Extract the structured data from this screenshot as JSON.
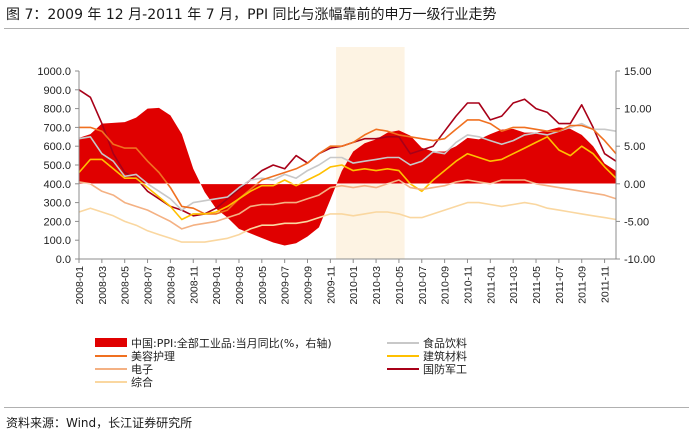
{
  "title": "图 7：2009 年 12 月-2011 年 7 月，PPI 同比与涨幅靠前的申万一级行业走势",
  "source": "资料来源：Wind，长江证券研究所",
  "chart_data": {
    "type": "line",
    "title": "图 7：2009 年 12 月-2011 年 7 月，PPI 同比与涨幅靠前的申万一级行业走势",
    "x": [
      "2008-01",
      "2008-02",
      "2008-03",
      "2008-04",
      "2008-05",
      "2008-06",
      "2008-07",
      "2008-08",
      "2008-09",
      "2008-10",
      "2008-11",
      "2008-12",
      "2009-01",
      "2009-02",
      "2009-03",
      "2009-04",
      "2009-05",
      "2009-06",
      "2009-07",
      "2009-08",
      "2009-09",
      "2009-10",
      "2009-11",
      "2009-12",
      "2010-01",
      "2010-02",
      "2010-03",
      "2010-04",
      "2010-05",
      "2010-06",
      "2010-07",
      "2010-08",
      "2010-09",
      "2010-10",
      "2010-11",
      "2010-12",
      "2011-01",
      "2011-02",
      "2011-03",
      "2011-04",
      "2011-05",
      "2011-06",
      "2011-07",
      "2011-08",
      "2011-09",
      "2011-10",
      "2011-11",
      "2011-12"
    ],
    "x_tick_labels": [
      "2008-01",
      "2008-03",
      "2008-05",
      "2008-07",
      "2008-09",
      "2008-11",
      "2009-01",
      "2009-03",
      "2009-05",
      "2009-07",
      "2009-09",
      "2009-11",
      "2010-01",
      "2010-03",
      "2010-05",
      "2010-07",
      "2010-09",
      "2010-11",
      "2011-01",
      "2011-03",
      "2011-05",
      "2011-07",
      "2011-09",
      "2011-11"
    ],
    "y_left": {
      "range": [
        0,
        1000
      ],
      "ticks": [
        "0.0",
        "100.0",
        "200.0",
        "300.0",
        "400.0",
        "500.0",
        "600.0",
        "700.0",
        "800.0",
        "900.0",
        "1000.0"
      ]
    },
    "y_right": {
      "range": [
        -10,
        15
      ],
      "ticks": [
        "-10.00",
        "-5.00",
        "0.00",
        "5.00",
        "10.00",
        "15.00"
      ]
    },
    "highlight_range": [
      "2009-12",
      "2010-05"
    ],
    "series": [
      {
        "name": "中国:PPI:全部工业品:当月同比(%，右轴)",
        "axis": "right",
        "kind": "area",
        "color": "#e00000",
        "values": [
          6.1,
          6.6,
          8.0,
          8.1,
          8.2,
          8.8,
          10.0,
          10.1,
          9.1,
          6.6,
          2.0,
          -1.1,
          -3.3,
          -4.5,
          -6.0,
          -6.6,
          -7.2,
          -7.8,
          -8.2,
          -7.9,
          -7.0,
          -5.8,
          -2.1,
          1.7,
          4.3,
          5.4,
          5.9,
          6.8,
          7.1,
          6.4,
          4.8,
          4.3,
          4.3,
          5.0,
          6.1,
          5.9,
          6.6,
          7.2,
          7.3,
          6.8,
          6.8,
          7.1,
          7.5,
          7.3,
          6.5,
          5.0,
          2.7,
          1.7
        ]
      },
      {
        "name": "食品饮料",
        "axis": "left",
        "kind": "line",
        "color": "#c8c8c8",
        "values": [
          640,
          650,
          560,
          520,
          440,
          450,
          400,
          360,
          320,
          260,
          300,
          310,
          320,
          330,
          380,
          420,
          430,
          420,
          450,
          430,
          470,
          500,
          540,
          540,
          510,
          520,
          530,
          540,
          540,
          500,
          520,
          570,
          560,
          620,
          660,
          650,
          630,
          610,
          630,
          660,
          670,
          660,
          680,
          700,
          720,
          690,
          690,
          680
        ]
      },
      {
        "name": "美容护理",
        "axis": "left",
        "kind": "line",
        "color": "#f07020",
        "values": [
          700,
          700,
          680,
          610,
          590,
          590,
          520,
          460,
          380,
          280,
          270,
          240,
          240,
          260,
          320,
          370,
          420,
          440,
          460,
          480,
          510,
          560,
          600,
          600,
          620,
          660,
          690,
          680,
          660,
          650,
          640,
          630,
          640,
          690,
          740,
          740,
          720,
          680,
          700,
          700,
          690,
          680,
          680,
          710,
          710,
          690,
          630,
          560
        ]
      },
      {
        "name": "建筑材料",
        "axis": "left",
        "kind": "line",
        "color": "#ffc000",
        "values": [
          460,
          530,
          530,
          480,
          430,
          430,
          380,
          330,
          280,
          210,
          240,
          240,
          250,
          280,
          320,
          360,
          390,
          390,
          420,
          390,
          420,
          450,
          490,
          500,
          470,
          480,
          470,
          480,
          470,
          400,
          360,
          420,
          470,
          520,
          560,
          540,
          520,
          530,
          560,
          590,
          620,
          650,
          580,
          550,
          600,
          560,
          490,
          430
        ]
      },
      {
        "name": "国防军工",
        "axis": "left",
        "kind": "line",
        "color": "#a80018",
        "values": [
          900,
          860,
          720,
          560,
          460,
          430,
          360,
          320,
          280,
          260,
          230,
          240,
          270,
          320,
          370,
          420,
          470,
          500,
          480,
          550,
          510,
          560,
          590,
          600,
          620,
          640,
          640,
          650,
          650,
          560,
          580,
          600,
          680,
          760,
          830,
          830,
          740,
          760,
          830,
          850,
          800,
          780,
          720,
          720,
          820,
          700,
          560,
          520
        ]
      },
      {
        "name": "电子",
        "axis": "left",
        "kind": "line",
        "color": "#f4b183",
        "values": [
          410,
          400,
          360,
          340,
          300,
          280,
          260,
          230,
          200,
          160,
          180,
          190,
          200,
          220,
          240,
          280,
          290,
          290,
          300,
          300,
          320,
          340,
          380,
          390,
          380,
          390,
          380,
          400,
          420,
          380,
          370,
          380,
          390,
          410,
          420,
          410,
          400,
          420,
          420,
          420,
          400,
          390,
          380,
          370,
          360,
          350,
          340,
          320
        ]
      },
      {
        "name": "综合",
        "axis": "left",
        "kind": "line",
        "color": "#fad7a0",
        "values": [
          250,
          270,
          250,
          230,
          200,
          180,
          150,
          130,
          110,
          90,
          90,
          90,
          100,
          110,
          130,
          160,
          180,
          180,
          190,
          190,
          200,
          220,
          240,
          240,
          230,
          240,
          250,
          250,
          240,
          220,
          220,
          240,
          260,
          280,
          300,
          300,
          290,
          280,
          290,
          300,
          290,
          270,
          260,
          250,
          240,
          230,
          220,
          210
        ]
      }
    ]
  }
}
